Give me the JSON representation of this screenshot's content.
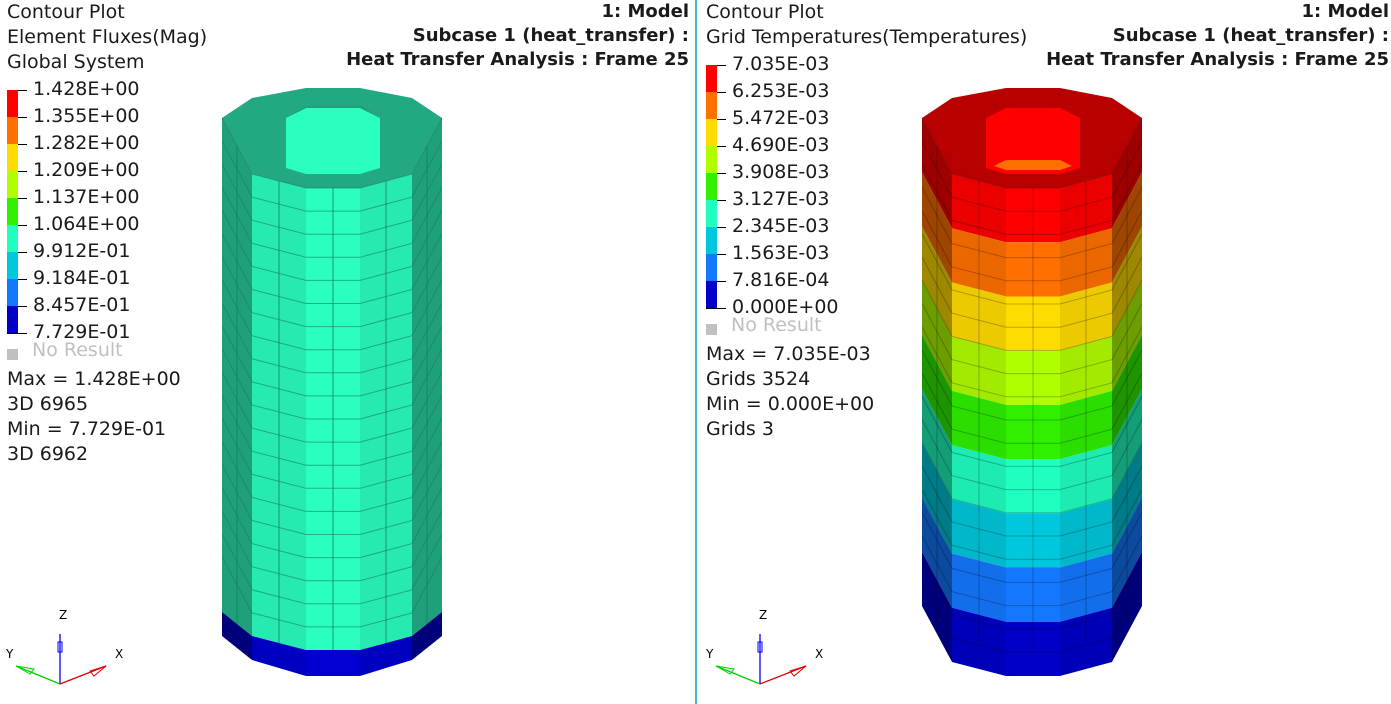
{
  "left_view": {
    "title_lines": [
      "Contour Plot",
      "Element Fluxes(Mag)",
      "Global System"
    ],
    "header_right": [
      "1: Model",
      "Subcase 1 (heat_transfer) :",
      "Heat Transfer Analysis : Frame 25"
    ],
    "legend": {
      "labels": [
        "1.428E+00",
        "1.355E+00",
        "1.282E+00",
        "1.209E+00",
        "1.137E+00",
        "1.064E+00",
        "9.912E-01",
        "9.184E-01",
        "8.457E-01",
        "7.729E-01"
      ],
      "colors": [
        "#ff0000",
        "#ff7000",
        "#ffdc00",
        "#b0ff00",
        "#30f000",
        "#20ffc0",
        "#00c8dc",
        "#1478ff",
        "#0000c8"
      ],
      "no_result": "No Result"
    },
    "stats": {
      "max": "Max =  1.428E+00",
      "max_loc": "3D 6965",
      "min": "Min =  7.729E-01",
      "min_loc": "3D 6962"
    }
  },
  "right_view": {
    "title_lines": [
      "Contour Plot",
      "Grid Temperatures(Temperatures)"
    ],
    "header_right": [
      "1: Model",
      "Subcase 1 (heat_transfer) :",
      "Heat Transfer Analysis : Frame 25"
    ],
    "legend": {
      "labels": [
        "7.035E-03",
        "6.253E-03",
        "5.472E-03",
        "4.690E-03",
        "3.908E-03",
        "3.127E-03",
        "2.345E-03",
        "1.563E-03",
        "7.816E-04",
        "0.000E+00"
      ],
      "colors": [
        "#ff0000",
        "#ff7000",
        "#ffdc00",
        "#b0ff00",
        "#30f000",
        "#20ffc0",
        "#00c8dc",
        "#1478ff",
        "#0000c8"
      ],
      "no_result": "No Result"
    },
    "stats": {
      "max": "Max =  7.035E-03",
      "max_loc": "Grids 3524",
      "min": "Min =  0.000E+00",
      "min_loc": "Grids 3"
    }
  },
  "triad": {
    "x": "X",
    "y": "Y",
    "z": "Z"
  },
  "colors": {
    "divider": "#3fb8c6",
    "background": "#ffffff"
  }
}
